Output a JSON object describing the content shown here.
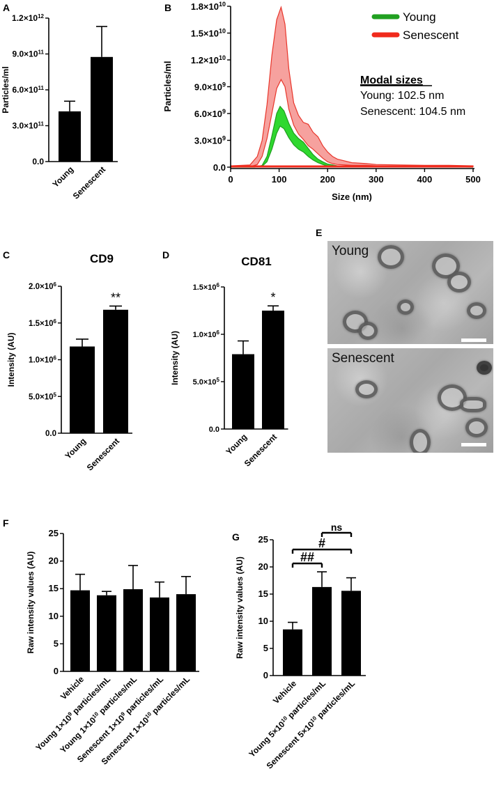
{
  "panels": {
    "A": {
      "letter": "A",
      "chart_data": {
        "type": "bar",
        "categories": [
          "Young",
          "Senescent"
        ],
        "values": [
          420000000000.0,
          875000000000.0
        ],
        "errors": [
          85000000000.0,
          255000000000.0
        ],
        "ylabel": "Particles/ml",
        "ylim": [
          0,
          1200000000000.0
        ],
        "yticks": [
          "0.0",
          "3.0×10^11",
          "6.0×10^11",
          "9.0×10^11",
          "1.2×10^12"
        ],
        "ytick_values": [
          0,
          300000000000.0,
          600000000000.0,
          900000000000.0,
          1200000000000.0
        ]
      }
    },
    "B": {
      "letter": "B",
      "chart_data": {
        "type": "area",
        "xlabel": "Size (nm)",
        "ylabel": "Particles/ml",
        "xlim": [
          0,
          500
        ],
        "ylim": [
          0,
          18000000000.0
        ],
        "xticks": [
          "0",
          "100",
          "200",
          "300",
          "400",
          "500"
        ],
        "xtick_values": [
          0,
          100,
          200,
          300,
          400,
          500
        ],
        "yticks": [
          "0.0",
          "3.0×10^9",
          "6.0×10^9",
          "9.0×10^9",
          "1.2×10^10",
          "1.5×10^10",
          "1.8×10^10"
        ],
        "ytick_values": [
          0,
          3000000000.0,
          6000000000.0,
          9000000000.0,
          12000000000.0,
          15000000000.0,
          18000000000.0
        ],
        "series": [
          {
            "name": "Young",
            "color": "#2fd82f",
            "edge": "#1f9e1f",
            "x": [
              0,
              50,
              65,
              75,
              85,
              95,
              102,
              110,
              120,
              130,
              140,
              150,
              160,
              170,
              180,
              190,
              200,
              220,
              250,
              300,
              350,
              400,
              450,
              500
            ],
            "lower": [
              0,
              0,
              100000000.0,
              600000000.0,
              2000000000.0,
              3800000000.0,
              4600000000.0,
              4300000000.0,
              3300000000.0,
              2500000000.0,
              2000000000.0,
              1700000000.0,
              1200000000.0,
              800000000.0,
              500000000.0,
              300000000.0,
              150000000.0,
              50000000.0,
              20000000.0,
              20000000.0,
              20000000.0,
              20000000.0,
              20000000.0,
              0
            ],
            "upper": [
              0,
              0,
              200000000.0,
              1200000000.0,
              3500000000.0,
              6000000000.0,
              6800000000.0,
              6300000000.0,
              4900000000.0,
              3800000000.0,
              3200000000.0,
              2800000000.0,
              2100000000.0,
              1400000000.0,
              900000000.0,
              600000000.0,
              350000000.0,
              150000000.0,
              80000000.0,
              60000000.0,
              50000000.0,
              40000000.0,
              30000000.0,
              0
            ]
          },
          {
            "name": "Senescent",
            "color": "#f6a19e",
            "edge": "#e8352a",
            "x": [
              0,
              40,
              55,
              65,
              75,
              85,
              95,
              104,
              112,
              120,
              130,
              140,
              150,
              160,
              170,
              180,
              190,
              200,
              210,
              220,
              250,
              280,
              300,
              350,
              400,
              450,
              500
            ],
            "lower": [
              50000000.0,
              50000000.0,
              300000000.0,
              1200000000.0,
              3200000000.0,
              6000000000.0,
              8800000000.0,
              9800000000.0,
              9000000000.0,
              6500000000.0,
              4700000000.0,
              3700000000.0,
              3100000000.0,
              2400000000.0,
              2000000000.0,
              1500000000.0,
              1000000000.0,
              600000000.0,
              400000000.0,
              300000000.0,
              200000000.0,
              200000000.0,
              150000000.0,
              100000000.0,
              100000000.0,
              100000000.0,
              50000000.0
            ],
            "upper": [
              150000000.0,
              250000000.0,
              1200000000.0,
              3000000000.0,
              7000000000.0,
              12500000000.0,
              16500000000.0,
              17900000000.0,
              16000000000.0,
              11000000000.0,
              7200000000.0,
              5800000000.0,
              5000000000.0,
              4800000000.0,
              3900000000.0,
              3400000000.0,
              2400000000.0,
              1700000000.0,
              1200000000.0,
              900000000.0,
              500000000.0,
              400000000.0,
              300000000.0,
              250000000.0,
              200000000.0,
              200000000.0,
              150000000.0
            ]
          }
        ]
      },
      "legend": [
        {
          "name": "Young",
          "color": "#21a021"
        },
        {
          "name": "Senescent",
          "color": "#f02a1c"
        }
      ],
      "annotation": {
        "title": "Modal sizes",
        "lines": [
          "Young: 102.5 nm",
          "Senescent: 104.5 nm"
        ]
      }
    },
    "C": {
      "letter": "C",
      "chart_data": {
        "type": "bar",
        "title": "CD9",
        "categories": [
          "Young",
          "Senescent"
        ],
        "values": [
          1180000.0,
          1680000.0
        ],
        "errors": [
          100000.0,
          50000.0
        ],
        "sig": [
          "",
          "**"
        ],
        "ylabel": "Intensity (AU)",
        "ylim": [
          0,
          2000000.0
        ],
        "yticks": [
          "0.0",
          "5.0×10^5",
          "1.0×10^6",
          "1.5×10^6",
          "2.0×10^6"
        ],
        "ytick_values": [
          0,
          500000.0,
          1000000.0,
          1500000.0,
          2000000.0
        ]
      }
    },
    "D": {
      "letter": "D",
      "chart_data": {
        "type": "bar",
        "title": "CD81",
        "categories": [
          "Young",
          "Senescent"
        ],
        "values": [
          790000.0,
          1250000.0
        ],
        "errors": [
          140000.0,
          50000.0
        ],
        "sig": [
          "",
          "*"
        ],
        "ylabel": "Intensity (AU)",
        "ylim": [
          0,
          1500000.0
        ],
        "yticks": [
          "0.0",
          "5.0×10^5",
          "1.0×10^6",
          "1.5×10^6"
        ],
        "ytick_values": [
          0,
          500000.0,
          1000000.0,
          1500000.0
        ]
      }
    },
    "E": {
      "letter": "E",
      "images": [
        {
          "label": "Young"
        },
        {
          "label": "Senescent"
        }
      ]
    },
    "F": {
      "letter": "F",
      "chart_data": {
        "type": "bar",
        "categories": [
          "Vehicle",
          "Young 1×10^9 particles/mL",
          "Young 1×10^10 particles/mL",
          "Senescent 1×10^9 particles/mL",
          "Senescent 1×10^10 particles/mL"
        ],
        "values": [
          14.7,
          13.8,
          14.9,
          13.4,
          14.0
        ],
        "errors": [
          2.9,
          0.7,
          4.3,
          2.8,
          3.2
        ],
        "ylabel": "Raw intensity values (AU)",
        "ylim": [
          0,
          25
        ],
        "yticks": [
          "0",
          "5",
          "10",
          "15",
          "20",
          "25"
        ],
        "ytick_values": [
          0,
          5,
          10,
          15,
          20,
          25
        ]
      }
    },
    "G": {
      "letter": "G",
      "chart_data": {
        "type": "bar",
        "categories": [
          "Vehicle",
          "Young 5×10^10 particles/mL",
          "Senescent 5×10^10 particles/mL"
        ],
        "values": [
          8.5,
          16.3,
          15.6
        ],
        "errors": [
          1.3,
          2.8,
          2.4
        ],
        "ylabel": "Raw intensity values (AU)",
        "ylim": [
          0,
          25
        ],
        "yticks": [
          "0",
          "5",
          "10",
          "15",
          "20",
          "25"
        ],
        "ytick_values": [
          0,
          5,
          10,
          15,
          20,
          25
        ],
        "comparisons": [
          {
            "from": 0,
            "to": 1,
            "label": "##"
          },
          {
            "from": 0,
            "to": 2,
            "label": "#"
          },
          {
            "from": 1,
            "to": 2,
            "label": "ns"
          }
        ]
      }
    }
  }
}
